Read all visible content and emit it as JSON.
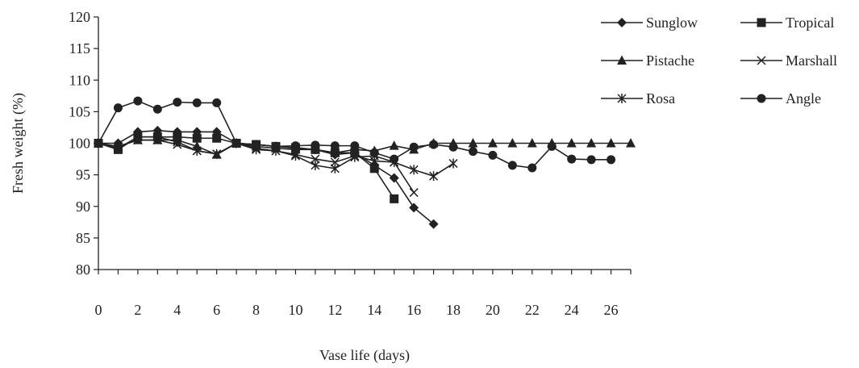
{
  "chart_data": {
    "type": "line",
    "title": "",
    "xlabel": "Vase life  (days)",
    "ylabel": "Fresh weight (%)",
    "xlim": [
      0,
      27
    ],
    "ylim": [
      80,
      120
    ],
    "x_ticks": [
      0,
      2,
      4,
      6,
      8,
      10,
      12,
      14,
      16,
      18,
      20,
      22,
      24,
      26
    ],
    "y_ticks": [
      80,
      85,
      90,
      95,
      100,
      105,
      110,
      115,
      120
    ],
    "grid": false,
    "legend_position": "top-right",
    "series": [
      {
        "name": "Sunglow",
        "marker": "diamond",
        "x": [
          0,
          1,
          2,
          3,
          4,
          5,
          6,
          7,
          8,
          9,
          10,
          11,
          12,
          13,
          14,
          15,
          16,
          17
        ],
        "y": [
          100,
          100,
          101.8,
          102,
          101.8,
          101.8,
          101.8,
          100,
          99.8,
          99.5,
          99.2,
          99,
          98.2,
          98.5,
          96.5,
          94.5,
          89.8,
          87.2
        ]
      },
      {
        "name": "Tropical",
        "marker": "square",
        "x": [
          0,
          1,
          2,
          3,
          4,
          5,
          6,
          7,
          8,
          9,
          10,
          11,
          12,
          13,
          14,
          15
        ],
        "y": [
          100,
          99,
          101,
          101,
          101,
          100.8,
          100.8,
          100,
          99.8,
          99.5,
          99.3,
          99,
          98.5,
          98.5,
          96,
          91.2
        ]
      },
      {
        "name": "Pistache",
        "marker": "triangle",
        "x": [
          0,
          1,
          2,
          3,
          4,
          5,
          6,
          7,
          8,
          9,
          10,
          11,
          12,
          13,
          14,
          15,
          16,
          17,
          18,
          19,
          20,
          21,
          22,
          23,
          24,
          25,
          26,
          27
        ],
        "y": [
          100,
          99.5,
          100.5,
          100.5,
          100.5,
          99.5,
          98.2,
          100,
          99.5,
          99.2,
          99,
          99,
          98.5,
          99,
          98.8,
          99.6,
          99,
          100,
          100,
          100,
          100,
          100,
          100,
          100,
          100,
          100,
          100,
          100
        ]
      },
      {
        "name": "Marshall",
        "marker": "x",
        "x": [
          0,
          1,
          2,
          3,
          4,
          5,
          6,
          7,
          8,
          9,
          10,
          11,
          12,
          13,
          14,
          15,
          16
        ],
        "y": [
          100,
          99.5,
          100.5,
          100.5,
          99.8,
          98.8,
          98.3,
          100,
          99.2,
          98.8,
          98.2,
          97.5,
          97,
          98,
          97.2,
          97,
          92.2
        ]
      },
      {
        "name": "Rosa",
        "marker": "asterisk",
        "x": [
          0,
          1,
          2,
          3,
          4,
          5,
          6,
          7,
          8,
          9,
          10,
          11,
          12,
          13,
          14,
          15,
          16,
          17,
          18
        ],
        "y": [
          100,
          99.2,
          101,
          101,
          100.2,
          98.8,
          98.3,
          100,
          99,
          98.8,
          98,
          96.5,
          96,
          97.8,
          98,
          97,
          95.8,
          94.8,
          96.8
        ]
      },
      {
        "name": "Angle",
        "marker": "circle",
        "x": [
          0,
          1,
          2,
          3,
          4,
          5,
          6,
          7,
          8,
          9,
          10,
          11,
          12,
          13,
          14,
          15,
          16,
          17,
          18,
          19,
          20,
          21,
          22,
          23,
          24,
          25,
          26
        ],
        "y": [
          100,
          105.6,
          106.7,
          105.4,
          106.5,
          106.4,
          106.4,
          100,
          99.8,
          99.5,
          99.6,
          99.7,
          99.6,
          99.6,
          98.5,
          97.5,
          99.4,
          99.8,
          99.4,
          98.7,
          98.1,
          96.5,
          96.1,
          99.5,
          97.5,
          97.4,
          97.4
        ]
      }
    ]
  }
}
